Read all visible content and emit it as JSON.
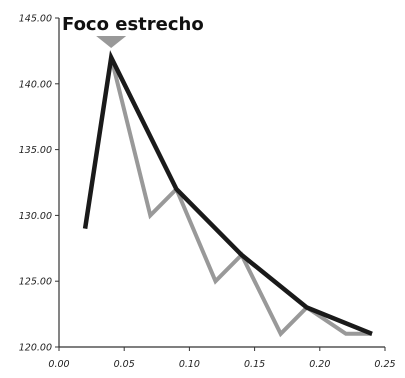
{
  "chart_data": {
    "type": "line",
    "title": "",
    "xlabel": "",
    "ylabel": "",
    "xlim": [
      0.0,
      0.25
    ],
    "ylim": [
      120.0,
      145.0
    ],
    "x_ticks": [
      "0.00",
      "0.05",
      "0.10",
      "0.15",
      "0.20",
      "0.25"
    ],
    "y_ticks": [
      "120.00",
      "125.00",
      "130.00",
      "135.00",
      "140.00",
      "145.00"
    ],
    "grid": false,
    "series": [
      {
        "color": "#999999",
        "x": [
          0.04,
          0.07,
          0.09,
          0.12,
          0.14,
          0.17,
          0.19,
          0.22,
          0.24
        ],
        "values": [
          142,
          130,
          132,
          125,
          127,
          121,
          123,
          121,
          121
        ]
      },
      {
        "color": "#1a1a1a",
        "x": [
          0.02,
          0.04,
          0.09,
          0.14,
          0.19,
          0.24
        ],
        "values": [
          129,
          142,
          132,
          127,
          123,
          121
        ]
      }
    ],
    "annotations": [
      {
        "text": "Foco estrecho",
        "x": 0.04,
        "y": 142,
        "marker": "down-triangle",
        "marker_color": "#999999"
      }
    ]
  }
}
